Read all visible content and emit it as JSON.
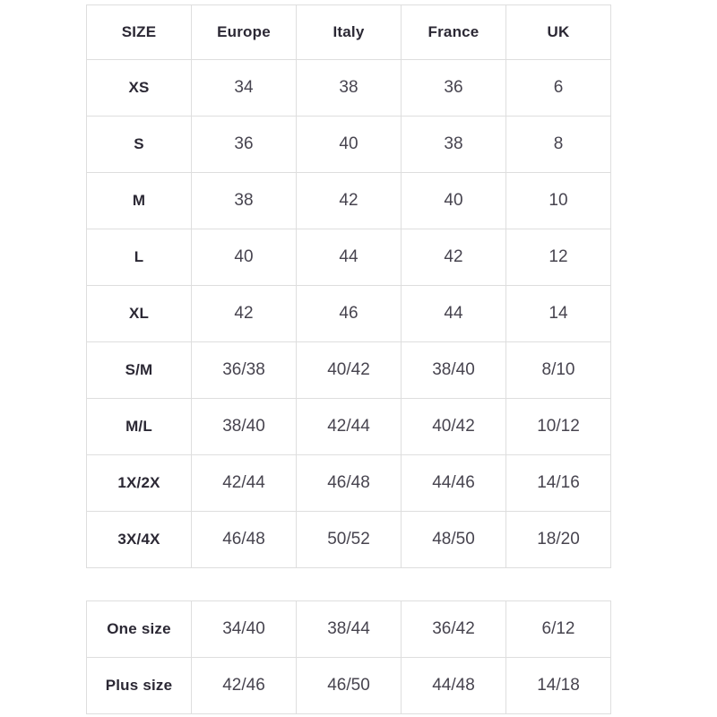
{
  "colors": {
    "bg": "#ffffff",
    "border": "#dedede",
    "heading": "#2b2834",
    "value": "#47444f"
  },
  "size_chart": {
    "columns": [
      "SIZE",
      "Europe",
      "Italy",
      "France",
      "UK"
    ],
    "rows": [
      {
        "label": "XS",
        "values": [
          "34",
          "38",
          "36",
          "6"
        ]
      },
      {
        "label": "S",
        "values": [
          "36",
          "40",
          "38",
          "8"
        ]
      },
      {
        "label": "M",
        "values": [
          "38",
          "42",
          "40",
          "10"
        ]
      },
      {
        "label": "L",
        "values": [
          "40",
          "44",
          "42",
          "12"
        ]
      },
      {
        "label": "XL",
        "values": [
          "42",
          "46",
          "44",
          "14"
        ]
      },
      {
        "label": "S/M",
        "values": [
          "36/38",
          "40/42",
          "38/40",
          "8/10"
        ]
      },
      {
        "label": "M/L",
        "values": [
          "38/40",
          "42/44",
          "40/42",
          "10/12"
        ]
      },
      {
        "label": "1X/2X",
        "values": [
          "42/44",
          "46/48",
          "44/46",
          "14/16"
        ]
      },
      {
        "label": "3X/4X",
        "values": [
          "46/48",
          "50/52",
          "48/50",
          "18/20"
        ]
      }
    ]
  },
  "special_size_chart": {
    "rows": [
      {
        "label": "One size",
        "values": [
          "34/40",
          "38/44",
          "36/42",
          "6/12"
        ]
      },
      {
        "label": "Plus size",
        "values": [
          "42/46",
          "46/50",
          "44/48",
          "14/18"
        ]
      }
    ]
  }
}
